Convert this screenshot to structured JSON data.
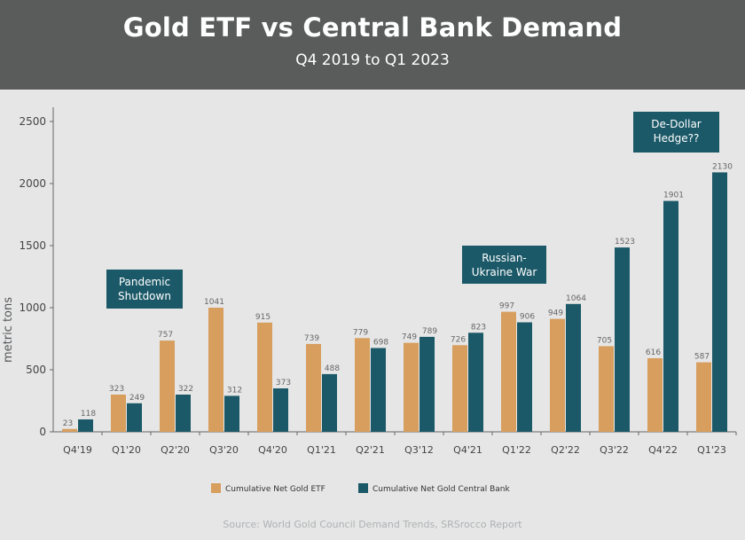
{
  "header": {
    "title": "Gold ETF vs Central Bank Demand",
    "subtitle": "Q4 2019 to Q1 2023"
  },
  "source": "Source: World Gold Council Demand Trends, SRSrocco Report",
  "colors": {
    "etf": "#d79e5e",
    "central_bank": "#1b5968",
    "annotation_bg": "#1b5968",
    "header_bg": "#5a5c5c"
  },
  "chart_data": {
    "type": "bar",
    "title": "Gold ETF vs Central Bank Demand",
    "subtitle": "Q4 2019 to Q1 2023",
    "xlabel": "",
    "ylabel": "metric tons",
    "ylim": [
      0,
      2500
    ],
    "yticks": [
      0,
      500,
      1000,
      1500,
      2000,
      2500
    ],
    "grid": false,
    "legend_position": "bottom",
    "categories": [
      "Q4'19",
      "Q1'20",
      "Q2'20",
      "Q3'20",
      "Q4'20",
      "Q1'21",
      "Q2'21",
      "Q3'12",
      "Q4'21",
      "Q1'22",
      "Q2'22",
      "Q3'22",
      "Q4'22",
      "Q1'23"
    ],
    "series": [
      {
        "name": "Cumulative Net Gold ETF",
        "values": [
          23,
          323,
          757,
          1041,
          915,
          739,
          779,
          749,
          726,
          997,
          949,
          705,
          616,
          587
        ],
        "bar_values": [
          23,
          300,
          735,
          1000,
          880,
          708,
          755,
          717,
          698,
          967,
          910,
          690,
          593,
          560
        ]
      },
      {
        "name": "Cumulative Net Gold Central Bank",
        "values": [
          118,
          249,
          322,
          312,
          373,
          488,
          698,
          789,
          823,
          906,
          1064,
          1523,
          1901,
          2130
        ],
        "bar_values": [
          100,
          230,
          300,
          290,
          350,
          465,
          675,
          765,
          798,
          882,
          1030,
          1485,
          1860,
          2090
        ]
      }
    ],
    "annotations": [
      {
        "lines": [
          "Pandemic",
          "Shutdown"
        ],
        "category": "Q1'20"
      },
      {
        "lines": [
          "Russian-",
          "Ukraine War"
        ],
        "category": "Q4'21"
      },
      {
        "lines": [
          "De-Dollar",
          "Hedge??"
        ],
        "category": "Q4'22"
      }
    ]
  }
}
